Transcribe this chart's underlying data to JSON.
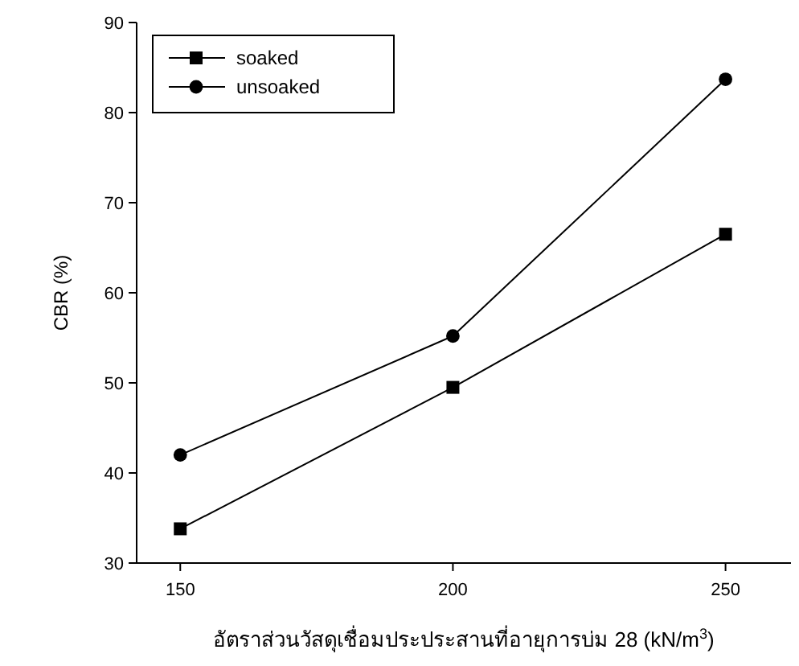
{
  "chart_data": {
    "type": "line",
    "xlabel": "อัตราส่วนวัสดุเชื่อมประประสานที่อายุการบ่ม 28 (kN/m$^{3}$)",
    "ylabel": "CBR (%)",
    "x": [
      150,
      200,
      250
    ],
    "series": [
      {
        "name": "soaked",
        "color": "#000000",
        "marker": "square",
        "values": [
          33.8,
          49.5,
          66.5
        ]
      },
      {
        "name": "unsoaked",
        "color": "#000000",
        "marker": "circle",
        "values": [
          42.0,
          55.2,
          83.7
        ]
      }
    ],
    "xlim": [
      142,
      262
    ],
    "ylim": [
      30,
      90
    ],
    "xticks": [
      150,
      200,
      250
    ],
    "yticks": [
      30,
      40,
      50,
      60,
      70,
      80,
      90
    ],
    "grid": false,
    "legend": "top left",
    "line_style": "solid"
  }
}
